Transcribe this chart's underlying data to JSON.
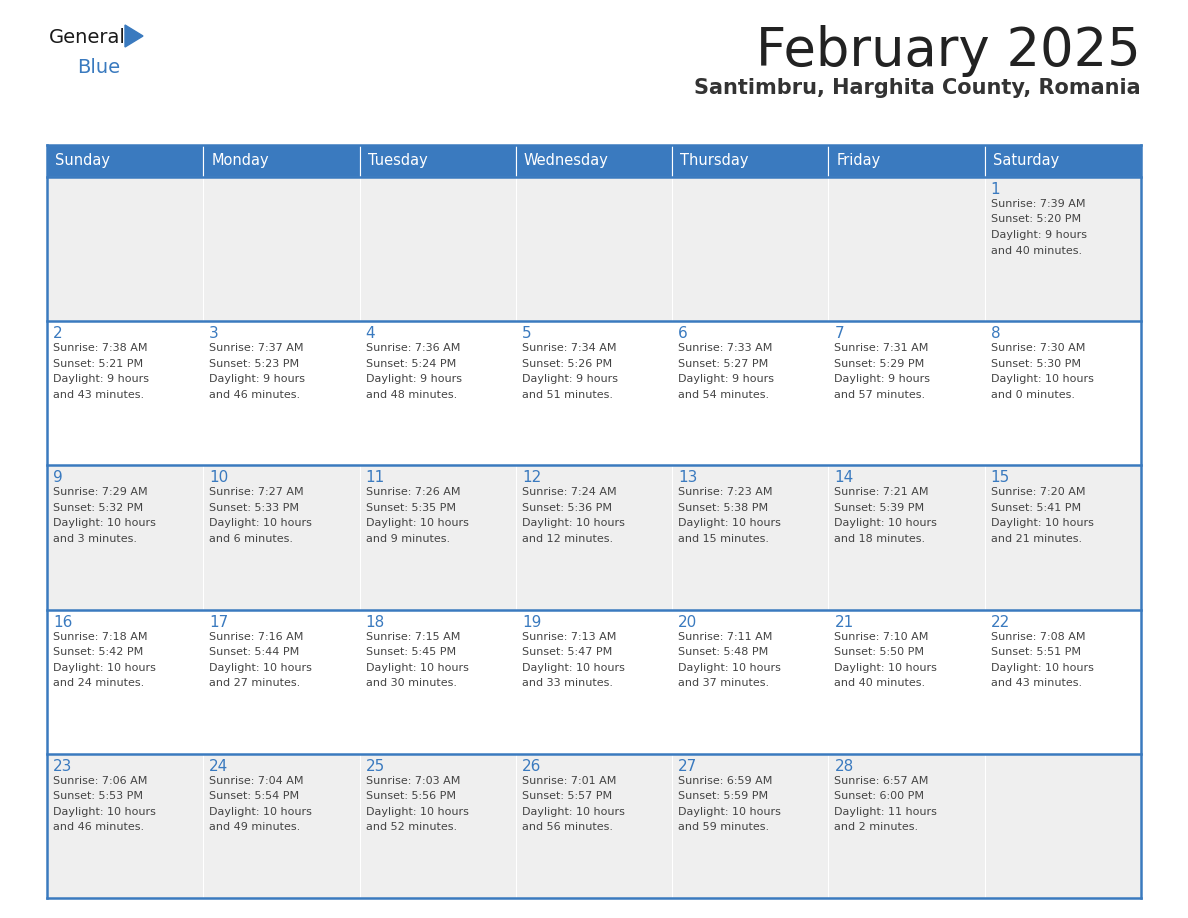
{
  "title": "February 2025",
  "subtitle": "Santimbru, Harghita County, Romania",
  "header_bg_color": "#3a7abf",
  "header_text_color": "#ffffff",
  "day_names": [
    "Sunday",
    "Monday",
    "Tuesday",
    "Wednesday",
    "Thursday",
    "Friday",
    "Saturday"
  ],
  "row_bg_even": "#efefef",
  "row_bg_odd": "#ffffff",
  "cell_border_color": "#3a7abf",
  "day_number_color": "#3a7abf",
  "info_text_color": "#444444",
  "title_color": "#222222",
  "subtitle_color": "#333333",
  "calendar_data": [
    [
      {
        "day": null,
        "info": ""
      },
      {
        "day": null,
        "info": ""
      },
      {
        "day": null,
        "info": ""
      },
      {
        "day": null,
        "info": ""
      },
      {
        "day": null,
        "info": ""
      },
      {
        "day": null,
        "info": ""
      },
      {
        "day": 1,
        "info": "Sunrise: 7:39 AM\nSunset: 5:20 PM\nDaylight: 9 hours\nand 40 minutes."
      }
    ],
    [
      {
        "day": 2,
        "info": "Sunrise: 7:38 AM\nSunset: 5:21 PM\nDaylight: 9 hours\nand 43 minutes."
      },
      {
        "day": 3,
        "info": "Sunrise: 7:37 AM\nSunset: 5:23 PM\nDaylight: 9 hours\nand 46 minutes."
      },
      {
        "day": 4,
        "info": "Sunrise: 7:36 AM\nSunset: 5:24 PM\nDaylight: 9 hours\nand 48 minutes."
      },
      {
        "day": 5,
        "info": "Sunrise: 7:34 AM\nSunset: 5:26 PM\nDaylight: 9 hours\nand 51 minutes."
      },
      {
        "day": 6,
        "info": "Sunrise: 7:33 AM\nSunset: 5:27 PM\nDaylight: 9 hours\nand 54 minutes."
      },
      {
        "day": 7,
        "info": "Sunrise: 7:31 AM\nSunset: 5:29 PM\nDaylight: 9 hours\nand 57 minutes."
      },
      {
        "day": 8,
        "info": "Sunrise: 7:30 AM\nSunset: 5:30 PM\nDaylight: 10 hours\nand 0 minutes."
      }
    ],
    [
      {
        "day": 9,
        "info": "Sunrise: 7:29 AM\nSunset: 5:32 PM\nDaylight: 10 hours\nand 3 minutes."
      },
      {
        "day": 10,
        "info": "Sunrise: 7:27 AM\nSunset: 5:33 PM\nDaylight: 10 hours\nand 6 minutes."
      },
      {
        "day": 11,
        "info": "Sunrise: 7:26 AM\nSunset: 5:35 PM\nDaylight: 10 hours\nand 9 minutes."
      },
      {
        "day": 12,
        "info": "Sunrise: 7:24 AM\nSunset: 5:36 PM\nDaylight: 10 hours\nand 12 minutes."
      },
      {
        "day": 13,
        "info": "Sunrise: 7:23 AM\nSunset: 5:38 PM\nDaylight: 10 hours\nand 15 minutes."
      },
      {
        "day": 14,
        "info": "Sunrise: 7:21 AM\nSunset: 5:39 PM\nDaylight: 10 hours\nand 18 minutes."
      },
      {
        "day": 15,
        "info": "Sunrise: 7:20 AM\nSunset: 5:41 PM\nDaylight: 10 hours\nand 21 minutes."
      }
    ],
    [
      {
        "day": 16,
        "info": "Sunrise: 7:18 AM\nSunset: 5:42 PM\nDaylight: 10 hours\nand 24 minutes."
      },
      {
        "day": 17,
        "info": "Sunrise: 7:16 AM\nSunset: 5:44 PM\nDaylight: 10 hours\nand 27 minutes."
      },
      {
        "day": 18,
        "info": "Sunrise: 7:15 AM\nSunset: 5:45 PM\nDaylight: 10 hours\nand 30 minutes."
      },
      {
        "day": 19,
        "info": "Sunrise: 7:13 AM\nSunset: 5:47 PM\nDaylight: 10 hours\nand 33 minutes."
      },
      {
        "day": 20,
        "info": "Sunrise: 7:11 AM\nSunset: 5:48 PM\nDaylight: 10 hours\nand 37 minutes."
      },
      {
        "day": 21,
        "info": "Sunrise: 7:10 AM\nSunset: 5:50 PM\nDaylight: 10 hours\nand 40 minutes."
      },
      {
        "day": 22,
        "info": "Sunrise: 7:08 AM\nSunset: 5:51 PM\nDaylight: 10 hours\nand 43 minutes."
      }
    ],
    [
      {
        "day": 23,
        "info": "Sunrise: 7:06 AM\nSunset: 5:53 PM\nDaylight: 10 hours\nand 46 minutes."
      },
      {
        "day": 24,
        "info": "Sunrise: 7:04 AM\nSunset: 5:54 PM\nDaylight: 10 hours\nand 49 minutes."
      },
      {
        "day": 25,
        "info": "Sunrise: 7:03 AM\nSunset: 5:56 PM\nDaylight: 10 hours\nand 52 minutes."
      },
      {
        "day": 26,
        "info": "Sunrise: 7:01 AM\nSunset: 5:57 PM\nDaylight: 10 hours\nand 56 minutes."
      },
      {
        "day": 27,
        "info": "Sunrise: 6:59 AM\nSunset: 5:59 PM\nDaylight: 10 hours\nand 59 minutes."
      },
      {
        "day": 28,
        "info": "Sunrise: 6:57 AM\nSunset: 6:00 PM\nDaylight: 11 hours\nand 2 minutes."
      },
      {
        "day": null,
        "info": ""
      }
    ]
  ]
}
